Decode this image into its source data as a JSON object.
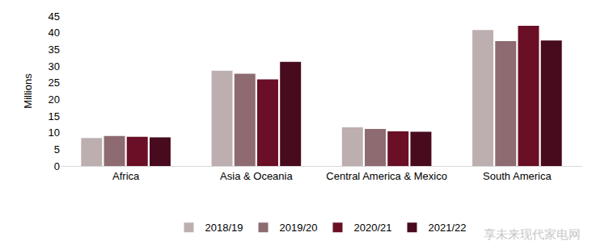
{
  "chart_data": {
    "type": "bar",
    "y_label": "Millions",
    "categories": [
      "Africa",
      "Asia & Oceania",
      "Central America & Mexico",
      "South America"
    ],
    "series": [
      {
        "name": "2018/19",
        "color": "#bdafb0",
        "values": [
          8.4,
          28.6,
          11.6,
          40.8
        ]
      },
      {
        "name": "2019/20",
        "color": "#8d6b70",
        "values": [
          9.0,
          27.7,
          11.1,
          37.5
        ]
      },
      {
        "name": "2020/21",
        "color": "#6a0f25",
        "values": [
          8.8,
          26.0,
          10.4,
          42.1
        ]
      },
      {
        "name": "2021/22",
        "color": "#480a1d",
        "values": [
          8.6,
          31.3,
          10.3,
          37.7
        ]
      }
    ],
    "ylim": [
      0,
      45
    ],
    "yticks": [
      0,
      5,
      10,
      15,
      20,
      25,
      30,
      35,
      40,
      45
    ],
    "grid": false,
    "legend": "bottom",
    "annotations": [
      "享未来现代家电网"
    ]
  }
}
